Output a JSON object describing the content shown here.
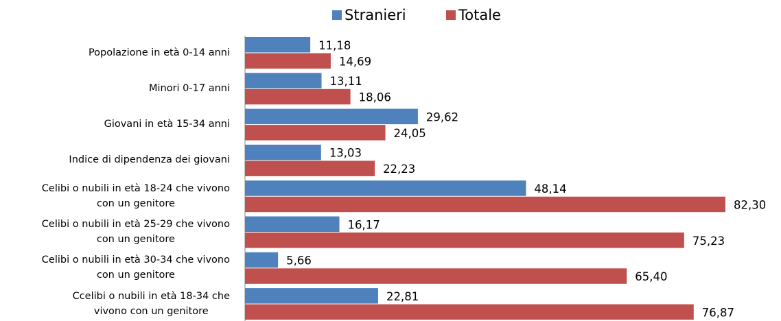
{
  "chart_data": {
    "type": "bar",
    "orientation": "horizontal",
    "categories": [
      "Popolazione in età 0-14 anni",
      "Minori 0-17 anni",
      "Giovani in età 15-34 anni",
      "Indice di dipendenza dei giovani",
      "Celibi o nubili in età 18-24 che vivono\ncon un genitore",
      "Celibi o nubili in età 25-29 che vivono\ncon un genitore",
      "Celibi o nubili in età 30-34 che vivono\ncon un genitore",
      "Ccelibi o nubili in età 18-34 che\nvivono con un genitore"
    ],
    "series": [
      {
        "name": "Stranieri",
        "color": "#4f81bd",
        "values": [
          11.18,
          13.11,
          29.62,
          13.03,
          48.14,
          16.17,
          5.66,
          22.81
        ],
        "value_labels": [
          "11,18",
          "13,11",
          "29,62",
          "13,03",
          "48,14",
          "16,17",
          "5,66",
          "22,81"
        ]
      },
      {
        "name": "Totale",
        "color": "#c0504d",
        "values": [
          14.69,
          18.06,
          24.05,
          22.23,
          82.3,
          75.23,
          65.4,
          76.87
        ],
        "value_labels": [
          "14,69",
          "18,06",
          "24,05",
          "22,23",
          "82,30",
          "75,23",
          "65,40",
          "76,87"
        ]
      }
    ],
    "xlim": [
      0,
      90
    ],
    "legend": "top"
  }
}
